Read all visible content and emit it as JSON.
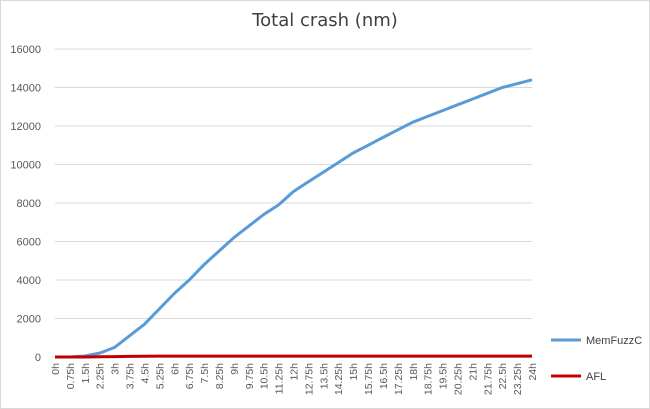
{
  "chart_data": {
    "type": "line",
    "title": "Total crash (nm)",
    "xlabel": "",
    "ylabel": "",
    "ylim": [
      0,
      16000
    ],
    "yticks": [
      "0",
      "2000",
      "4000",
      "6000",
      "8000",
      "10000",
      "12000",
      "14000",
      "16000"
    ],
    "grid": true,
    "legend_position": "right",
    "x_tick_labels": [
      "0h",
      "0.75h",
      "1.5h",
      "2.25h",
      "3h",
      "3.75h",
      "4.5h",
      "5.25h",
      "6h",
      "6.75h",
      "7.5h",
      "8.25h",
      "9h",
      "9.75h",
      "10.5h",
      "11.25h",
      "12h",
      "12.75h",
      "13.5h",
      "14.25h",
      "15h",
      "15.75h",
      "16.5h",
      "17.25h",
      "18h",
      "18.75h",
      "19.5h",
      "20.25h",
      "21h",
      "21.75h",
      "22.5h",
      "23.25h",
      "24h"
    ],
    "x_hours": [
      0,
      0.75,
      1.5,
      2.25,
      3,
      3.75,
      4.5,
      5.25,
      6,
      6.75,
      7.5,
      8.25,
      9,
      9.75,
      10.5,
      11.25,
      12,
      12.75,
      13.5,
      14.25,
      15,
      15.75,
      16.5,
      17.25,
      18,
      18.75,
      19.5,
      20.25,
      21,
      21.75,
      22.5,
      23.25,
      24
    ],
    "series": [
      {
        "name": "MemFuzzC",
        "color": "#5b9bd5",
        "values": [
          0,
          0,
          50,
          200,
          500,
          1100,
          1700,
          2500,
          3300,
          4000,
          4800,
          5500,
          6200,
          6800,
          7400,
          7900,
          8600,
          9100,
          9600,
          10100,
          10600,
          11000,
          11400,
          11800,
          12200,
          12500,
          12800,
          13100,
          13400,
          13700,
          14000,
          14200,
          14400
        ]
      },
      {
        "name": "AFL",
        "color": "#c00000",
        "values": [
          0,
          0,
          0,
          10,
          20,
          30,
          40,
          45,
          45,
          45,
          45,
          45,
          45,
          45,
          45,
          45,
          45,
          45,
          45,
          45,
          45,
          45,
          45,
          45,
          45,
          45,
          45,
          45,
          45,
          45,
          45,
          45,
          45
        ]
      }
    ]
  }
}
